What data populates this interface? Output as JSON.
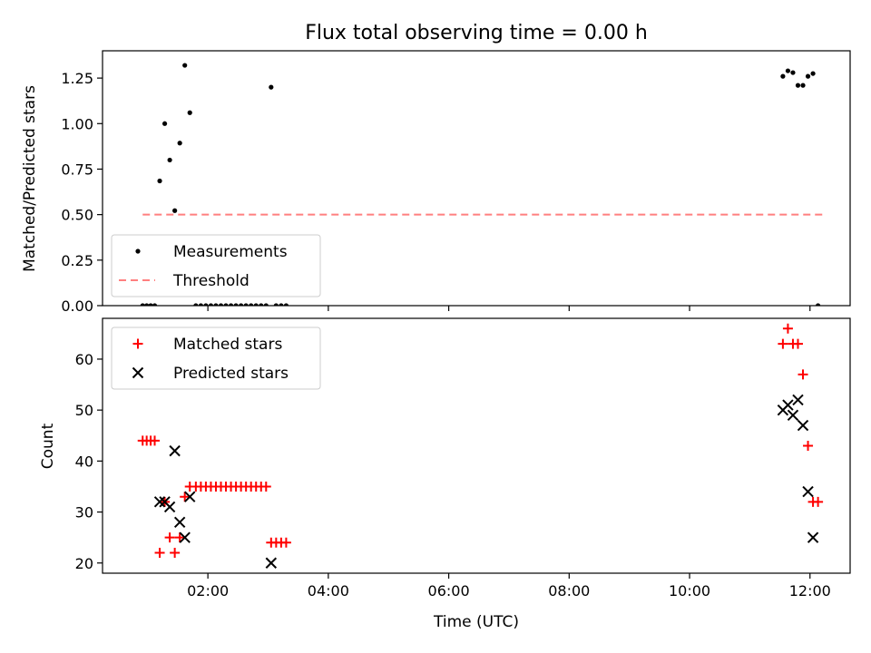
{
  "chart_data": [
    {
      "type": "scatter",
      "title": "Flux total observing time = 0.00 h",
      "xlabel": "",
      "ylabel": "Matched/Predicted stars",
      "xlim": [
        "00:15",
        "12:40"
      ],
      "ylim": [
        0,
        1.4
      ],
      "x_ticks": [
        "02:00",
        "04:00",
        "06:00",
        "08:00",
        "10:00",
        "12:00"
      ],
      "x_tick_labels_shown": false,
      "y_ticks": [
        0.0,
        0.25,
        0.5,
        0.75,
        1.0,
        1.25
      ],
      "y_tick_labels": [
        "0.00",
        "0.25",
        "0.50",
        "0.75",
        "1.00",
        "1.25"
      ],
      "legend": {
        "placement": "lower-left",
        "entries": [
          {
            "label": "Measurements",
            "marker": "dot",
            "color": "#000000"
          },
          {
            "label": "Threshold",
            "marker": "dashed-line",
            "color": "#ff7f7f"
          }
        ]
      },
      "series": [
        {
          "name": "Measurements",
          "marker": "dot",
          "color": "#000000",
          "points": [
            [
              "00:55",
              0.0
            ],
            [
              "00:59",
              0.0
            ],
            [
              "01:03",
              0.0
            ],
            [
              "01:07",
              0.0
            ],
            [
              "01:12",
              0.685
            ],
            [
              "01:17",
              1.0
            ],
            [
              "01:22",
              0.8
            ],
            [
              "01:27",
              0.522
            ],
            [
              "01:32",
              0.893
            ],
            [
              "01:37",
              1.32
            ],
            [
              "01:42",
              1.06
            ],
            [
              "01:48",
              0.0
            ],
            [
              "01:53",
              0.0
            ],
            [
              "01:58",
              0.0
            ],
            [
              "02:03",
              0.0
            ],
            [
              "02:08",
              0.0
            ],
            [
              "02:13",
              0.0
            ],
            [
              "02:18",
              0.0
            ],
            [
              "02:23",
              0.0
            ],
            [
              "02:28",
              0.0
            ],
            [
              "02:33",
              0.0
            ],
            [
              "02:38",
              0.0
            ],
            [
              "02:43",
              0.0
            ],
            [
              "02:48",
              0.0
            ],
            [
              "02:53",
              0.0
            ],
            [
              "02:58",
              0.0
            ],
            [
              "03:03",
              1.2
            ],
            [
              "03:08",
              0.0
            ],
            [
              "03:13",
              0.0
            ],
            [
              "03:18",
              0.0
            ],
            [
              "11:33",
              1.26
            ],
            [
              "11:38",
              1.29
            ],
            [
              "11:43",
              1.28
            ],
            [
              "11:48",
              1.21
            ],
            [
              "11:53",
              1.21
            ],
            [
              "11:58",
              1.26
            ],
            [
              "12:03",
              1.275
            ],
            [
              "12:08",
              0.0
            ]
          ]
        },
        {
          "name": "Threshold",
          "marker": "dashed-line",
          "color": "#ff7f7f",
          "points": [
            [
              "00:55",
              0.5
            ],
            [
              "12:13",
              0.5
            ]
          ]
        }
      ]
    },
    {
      "type": "scatter",
      "title": "",
      "xlabel": "Time (UTC)",
      "ylabel": "Count",
      "xlim": [
        "00:15",
        "12:40"
      ],
      "ylim": [
        18,
        68
      ],
      "x_ticks": [
        "02:00",
        "04:00",
        "06:00",
        "08:00",
        "10:00",
        "12:00"
      ],
      "x_tick_labels": [
        "02:00",
        "04:00",
        "06:00",
        "08:00",
        "10:00",
        "12:00"
      ],
      "y_ticks": [
        20,
        30,
        40,
        50,
        60
      ],
      "y_tick_labels": [
        "20",
        "30",
        "40",
        "50",
        "60"
      ],
      "legend": {
        "placement": "top-left",
        "entries": [
          {
            "label": "Matched stars",
            "marker": "plus",
            "color": "#ff0000"
          },
          {
            "label": "Predicted stars",
            "marker": "x",
            "color": "#000000"
          }
        ]
      },
      "series": [
        {
          "name": "Matched stars",
          "marker": "plus",
          "color": "#ff0000",
          "points": [
            [
              "00:55",
              44
            ],
            [
              "00:59",
              44
            ],
            [
              "01:03",
              44
            ],
            [
              "01:07",
              44
            ],
            [
              "01:12",
              22
            ],
            [
              "01:17",
              32
            ],
            [
              "01:22",
              25
            ],
            [
              "01:27",
              22
            ],
            [
              "01:32",
              25
            ],
            [
              "01:37",
              33
            ],
            [
              "01:42",
              35
            ],
            [
              "01:48",
              35
            ],
            [
              "01:53",
              35
            ],
            [
              "01:58",
              35
            ],
            [
              "02:03",
              35
            ],
            [
              "02:08",
              35
            ],
            [
              "02:13",
              35
            ],
            [
              "02:18",
              35
            ],
            [
              "02:23",
              35
            ],
            [
              "02:28",
              35
            ],
            [
              "02:33",
              35
            ],
            [
              "02:38",
              35
            ],
            [
              "02:43",
              35
            ],
            [
              "02:48",
              35
            ],
            [
              "02:53",
              35
            ],
            [
              "02:58",
              35
            ],
            [
              "03:03",
              24
            ],
            [
              "03:08",
              24
            ],
            [
              "03:13",
              24
            ],
            [
              "03:18",
              24
            ],
            [
              "11:33",
              63
            ],
            [
              "11:38",
              66
            ],
            [
              "11:43",
              63
            ],
            [
              "11:48",
              63
            ],
            [
              "11:53",
              57
            ],
            [
              "11:58",
              43
            ],
            [
              "12:03",
              32
            ],
            [
              "12:08",
              32
            ]
          ]
        },
        {
          "name": "Predicted stars",
          "marker": "x",
          "color": "#000000",
          "points": [
            [
              "01:12",
              32
            ],
            [
              "01:17",
              32
            ],
            [
              "01:22",
              31
            ],
            [
              "01:27",
              42
            ],
            [
              "01:32",
              28
            ],
            [
              "01:37",
              25
            ],
            [
              "01:42",
              33
            ],
            [
              "03:03",
              20
            ],
            [
              "11:33",
              50
            ],
            [
              "11:38",
              51
            ],
            [
              "11:43",
              49
            ],
            [
              "11:48",
              52
            ],
            [
              "11:53",
              47
            ],
            [
              "11:58",
              34
            ],
            [
              "12:03",
              25
            ]
          ]
        }
      ]
    }
  ]
}
